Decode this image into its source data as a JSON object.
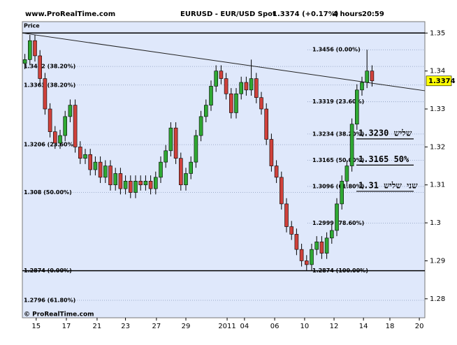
{
  "chart_data": {
    "type": "candlestick",
    "site": "www.ProRealTime.com",
    "title": "EURUSD - EUR/USD Spot",
    "quote": "1.3374 (+0.17%)",
    "period": "4 hours",
    "time": "20:59",
    "y_label": "Price",
    "footer": "© ProRealTime.com",
    "last_price": 1.3374,
    "up_color": "#2fa833",
    "down_color": "#d0413b",
    "xlim": [
      0,
      160
    ],
    "ylim": [
      1.275,
      1.353
    ],
    "yticks": [
      1.28,
      1.29,
      1.3,
      1.31,
      1.32,
      1.33,
      1.34,
      1.35
    ],
    "xticks": [
      {
        "value": 5.5,
        "label": "15"
      },
      {
        "value": 17.5,
        "label": "17"
      },
      {
        "value": 29.7,
        "label": "21"
      },
      {
        "value": 41,
        "label": "23"
      },
      {
        "value": 53.3,
        "label": "27"
      },
      {
        "value": 65,
        "label": "29"
      },
      {
        "value": 81.4,
        "label": "2011"
      },
      {
        "value": 88.3,
        "label": "04"
      },
      {
        "value": 100.3,
        "label": "06"
      },
      {
        "value": 112.2,
        "label": "10"
      },
      {
        "value": 123.9,
        "label": "12"
      },
      {
        "value": 135.6,
        "label": "14"
      },
      {
        "value": 146.1,
        "label": "18"
      },
      {
        "value": 157.8,
        "label": "20"
      }
    ],
    "x": [
      1,
      3,
      5,
      7,
      9,
      11,
      13,
      15,
      17,
      19,
      21,
      23,
      25,
      27,
      29,
      31,
      33,
      35,
      37,
      39,
      41,
      43,
      45,
      47,
      49,
      51,
      53,
      55,
      57,
      59,
      61,
      63,
      65,
      67,
      69,
      71,
      73,
      75,
      77,
      79,
      81,
      83,
      85,
      87,
      89,
      91,
      93,
      95,
      97,
      99,
      101,
      103,
      105,
      107,
      109,
      111,
      113,
      115,
      117,
      119,
      121,
      123,
      125,
      127,
      129,
      131,
      133,
      135,
      137,
      139
    ],
    "open": [
      1.342,
      1.343,
      1.348,
      1.344,
      1.338,
      1.33,
      1.324,
      1.321,
      1.323,
      1.328,
      1.331,
      1.32,
      1.317,
      1.318,
      1.314,
      1.316,
      1.312,
      1.315,
      1.31,
      1.313,
      1.309,
      1.311,
      1.308,
      1.311,
      1.31,
      1.311,
      1.309,
      1.312,
      1.316,
      1.319,
      1.325,
      1.317,
      1.31,
      1.313,
      1.316,
      1.323,
      1.328,
      1.331,
      1.336,
      1.34,
      1.338,
      1.334,
      1.329,
      1.334,
      1.337,
      1.335,
      1.338,
      1.333,
      1.33,
      1.322,
      1.315,
      1.312,
      1.305,
      1.299,
      1.297,
      1.293,
      1.29,
      1.289,
      1.293,
      1.295,
      1.292,
      1.296,
      1.298,
      1.305,
      1.311,
      1.315,
      1.326,
      1.335,
      1.337,
      1.34
    ],
    "high": [
      1.3445,
      1.3495,
      1.3495,
      1.3455,
      1.3395,
      1.3315,
      1.3255,
      1.3245,
      1.3295,
      1.3325,
      1.3325,
      1.3215,
      1.3195,
      1.3195,
      1.3175,
      1.3175,
      1.3165,
      1.3165,
      1.3145,
      1.3145,
      1.3125,
      1.3125,
      1.3125,
      1.3125,
      1.3125,
      1.3125,
      1.3135,
      1.3175,
      1.3205,
      1.3265,
      1.3265,
      1.3185,
      1.3145,
      1.3175,
      1.3245,
      1.3295,
      1.3325,
      1.3375,
      1.3415,
      1.3415,
      1.3395,
      1.3355,
      1.3355,
      1.3385,
      1.3385,
      1.343,
      1.3395,
      1.3345,
      1.3315,
      1.3235,
      1.3165,
      1.3135,
      1.3065,
      1.3005,
      1.2985,
      1.2945,
      1.2915,
      1.2945,
      1.2965,
      1.2965,
      1.2975,
      1.2995,
      1.3065,
      1.3125,
      1.3165,
      1.3275,
      1.3365,
      1.3385,
      1.3456,
      1.3415
    ],
    "low": [
      1.3405,
      1.3415,
      1.3425,
      1.3365,
      1.3285,
      1.3225,
      1.3195,
      1.3195,
      1.3215,
      1.3265,
      1.3185,
      1.3155,
      1.3155,
      1.3125,
      1.3125,
      1.3105,
      1.3105,
      1.3085,
      1.3085,
      1.3075,
      1.3075,
      1.3065,
      1.3065,
      1.3085,
      1.3085,
      1.3075,
      1.3075,
      1.3105,
      1.3145,
      1.3175,
      1.3155,
      1.3085,
      1.3085,
      1.3115,
      1.3145,
      1.3215,
      1.3265,
      1.3295,
      1.3345,
      1.3365,
      1.3325,
      1.3275,
      1.3275,
      1.3325,
      1.3335,
      1.3335,
      1.3315,
      1.3285,
      1.3205,
      1.3135,
      1.3105,
      1.3035,
      1.2975,
      1.2955,
      1.2915,
      1.2885,
      1.2874,
      1.2875,
      1.2915,
      1.2905,
      1.2905,
      1.2945,
      1.2965,
      1.3035,
      1.3095,
      1.3135,
      1.3245,
      1.3335,
      1.3355,
      1.3359
    ],
    "close": [
      1.343,
      1.348,
      1.344,
      1.338,
      1.33,
      1.324,
      1.321,
      1.323,
      1.328,
      1.331,
      1.32,
      1.317,
      1.318,
      1.314,
      1.316,
      1.312,
      1.315,
      1.31,
      1.313,
      1.309,
      1.311,
      1.308,
      1.311,
      1.31,
      1.311,
      1.309,
      1.312,
      1.316,
      1.319,
      1.325,
      1.317,
      1.31,
      1.313,
      1.316,
      1.323,
      1.328,
      1.331,
      1.336,
      1.34,
      1.338,
      1.334,
      1.329,
      1.334,
      1.337,
      1.335,
      1.338,
      1.333,
      1.33,
      1.322,
      1.315,
      1.312,
      1.305,
      1.299,
      1.297,
      1.293,
      1.29,
      1.289,
      1.293,
      1.295,
      1.292,
      1.296,
      1.298,
      1.305,
      1.311,
      1.315,
      1.326,
      1.335,
      1.337,
      1.34,
      1.3374
    ],
    "trendline": {
      "x": [
        0,
        160
      ],
      "y": [
        1.35,
        1.3348
      ]
    },
    "hlines": [
      1.35,
      1.2874
    ],
    "levels_left": [
      {
        "value": 1.3412,
        "label": "1.3412 (38.20%)"
      },
      {
        "value": 1.3363,
        "label": "1.3363 (38.20%)"
      },
      {
        "value": 1.3206,
        "label": "1.3206 (23.60%)"
      },
      {
        "value": 1.308,
        "label": "1.308 (50.00%)"
      },
      {
        "value": 1.2874,
        "label": "1.2874 (0.00%)"
      },
      {
        "value": 1.2796,
        "label": "1.2796 (61.80%)"
      }
    ],
    "levels_right": [
      {
        "value": 1.3456,
        "label": "1.3456 (0.00%)"
      },
      {
        "value": 1.3319,
        "label": "1.3319 (23.60%)"
      },
      {
        "value": 1.3234,
        "label": "1.3234 (38.20%)"
      },
      {
        "value": 1.3165,
        "label": "1.3165 (50.00%)"
      },
      {
        "value": 1.3096,
        "label": "1.3096 (61.80%)"
      },
      {
        "value": 1.2999,
        "label": "1.2999 (78.60%)"
      },
      {
        "value": 1.2874,
        "label": "1.2874 (100.00%)"
      }
    ],
    "annotations": [
      {
        "value": 1.3234,
        "text": "1.3230 שליש"
      },
      {
        "value": 1.3165,
        "text": "1.3165  50%"
      },
      {
        "value": 1.3096,
        "text": "שני שליש 1.31"
      }
    ]
  }
}
